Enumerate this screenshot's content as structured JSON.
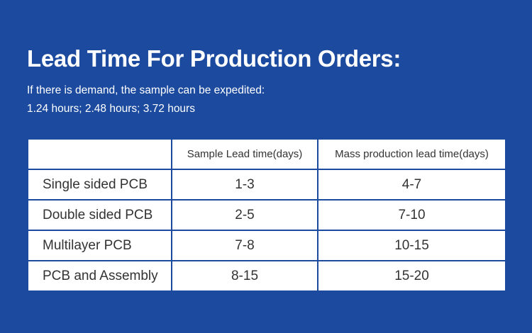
{
  "header": {
    "title": "Lead Time For Production Orders:",
    "subtitle_lines": [
      "If there is demand, the sample can be expedited:",
      "1.24 hours; 2.48 hours; 3.72 hours"
    ]
  },
  "table": {
    "headers": [
      "Sample Lead time(days)",
      "Mass production lead time(days)"
    ],
    "rows": [
      [
        "Single sided PCB",
        "1-3",
        "4-7"
      ],
      [
        "Double sided PCB",
        "2-5",
        "7-10"
      ],
      [
        "Multilayer PCB",
        "7-8",
        "10-15"
      ],
      [
        "PCB and Assembly",
        "8-15",
        "15-20"
      ]
    ]
  }
}
